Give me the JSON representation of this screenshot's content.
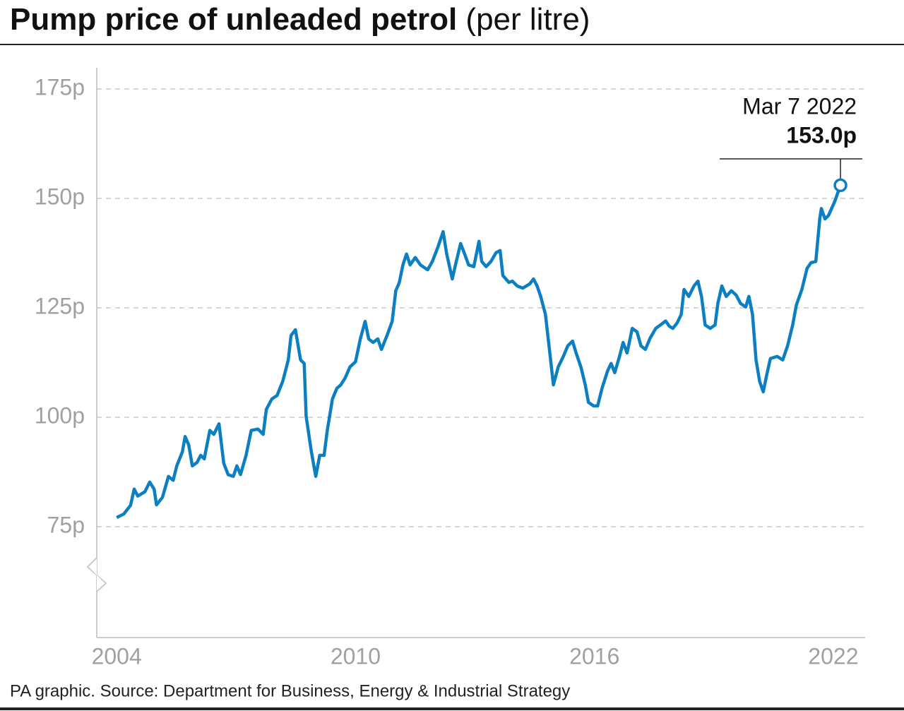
{
  "chart_data": {
    "type": "line",
    "title": "Pump price of unleaded petrol",
    "title_suffix": "(per litre)",
    "source": "PA graphic. Source: Department for Business, Energy & Industrial Strategy",
    "xlim": [
      2003.5,
      2022.8
    ],
    "xticks": [
      2004,
      2010,
      2016,
      2022
    ],
    "ylim": [
      50,
      175
    ],
    "yticks": [
      {
        "value": 75,
        "label": "75p"
      },
      {
        "value": 100,
        "label": "100p"
      },
      {
        "value": 125,
        "label": "125p"
      },
      {
        "value": 150,
        "label": "150p"
      },
      {
        "value": 175,
        "label": "175p"
      }
    ],
    "grid": true,
    "series": [
      {
        "name": "Unleaded petrol",
        "color": "#0b7fc2",
        "x": [
          2004.0,
          2004.18,
          2004.35,
          2004.44,
          2004.53,
          2004.71,
          2004.83,
          2004.94,
          2005.0,
          2005.15,
          2005.3,
          2005.42,
          2005.51,
          2005.65,
          2005.72,
          2005.81,
          2005.9,
          2006.02,
          2006.11,
          2006.2,
          2006.34,
          2006.44,
          2006.57,
          2006.69,
          2006.8,
          2006.93,
          2007.02,
          2007.11,
          2007.25,
          2007.38,
          2007.55,
          2007.68,
          2007.76,
          2007.9,
          2008.03,
          2008.17,
          2008.31,
          2008.38,
          2008.49,
          2008.62,
          2008.71,
          2008.76,
          2008.89,
          2009.0,
          2009.1,
          2009.21,
          2009.29,
          2009.42,
          2009.53,
          2009.63,
          2009.74,
          2009.86,
          2010.0,
          2010.12,
          2010.24,
          2010.33,
          2010.44,
          2010.56,
          2010.65,
          2010.79,
          2010.92,
          2011.01,
          2011.1,
          2011.19,
          2011.28,
          2011.37,
          2011.5,
          2011.63,
          2011.81,
          2011.93,
          2012.07,
          2012.2,
          2012.29,
          2012.43,
          2012.51,
          2012.64,
          2012.74,
          2012.84,
          2012.97,
          2013.1,
          2013.17,
          2013.28,
          2013.4,
          2013.53,
          2013.63,
          2013.7,
          2013.85,
          2013.94,
          2014.06,
          2014.2,
          2014.38,
          2014.47,
          2014.56,
          2014.65,
          2014.77,
          2014.88,
          2014.97,
          2015.09,
          2015.22,
          2015.33,
          2015.45,
          2015.54,
          2015.66,
          2015.77,
          2015.85,
          2015.98,
          2016.08,
          2016.19,
          2016.33,
          2016.42,
          2016.51,
          2016.63,
          2016.72,
          2016.82,
          2016.95,
          2017.07,
          2017.17,
          2017.28,
          2017.4,
          2017.54,
          2017.66,
          2017.79,
          2017.88,
          2017.97,
          2018.08,
          2018.18,
          2018.25,
          2018.37,
          2018.5,
          2018.6,
          2018.69,
          2018.78,
          2018.91,
          2019.03,
          2019.1,
          2019.2,
          2019.31,
          2019.44,
          2019.56,
          2019.67,
          2019.8,
          2019.88,
          2019.97,
          2020.06,
          2020.15,
          2020.24,
          2020.33,
          2020.42,
          2020.59,
          2020.73,
          2020.85,
          2020.98,
          2021.07,
          2021.21,
          2021.34,
          2021.44,
          2021.56,
          2021.66,
          2021.7,
          2021.79,
          2021.88,
          2022.04,
          2022.18
        ],
        "values": [
          77.1,
          77.9,
          79.9,
          83.6,
          82,
          83,
          85.2,
          83.6,
          80,
          81.7,
          86.5,
          85.6,
          88.9,
          92.1,
          95.6,
          93.7,
          88.9,
          89.7,
          91.3,
          90.5,
          97,
          96.1,
          98.5,
          89.5,
          86.9,
          86.5,
          88.9,
          86.9,
          91.3,
          97,
          97.3,
          96.1,
          101.8,
          104.2,
          105,
          108.2,
          113.1,
          118.7,
          120,
          113.1,
          112.3,
          100.2,
          92.1,
          86.5,
          91.3,
          91.3,
          97,
          104.2,
          106.6,
          107.4,
          109,
          111.5,
          112.7,
          117.9,
          121.9,
          117.9,
          117.1,
          117.9,
          115.5,
          118.7,
          121.9,
          128.9,
          130.8,
          134.8,
          137.3,
          134.8,
          136.5,
          134.8,
          133.7,
          135.6,
          138.9,
          142.4,
          137.3,
          131.6,
          134.8,
          139.7,
          137.3,
          134.8,
          134.4,
          140.2,
          135.6,
          134.4,
          135.6,
          137.6,
          138.1,
          132.4,
          130.8,
          131.1,
          130,
          129.5,
          130.5,
          131.6,
          130,
          127.6,
          123.5,
          114.7,
          107.4,
          111.5,
          113.9,
          116.3,
          117.4,
          114.7,
          111.5,
          107.4,
          103.4,
          102.6,
          102.6,
          106.6,
          110.6,
          112.3,
          110.2,
          113.9,
          117.1,
          114.7,
          120.3,
          119.5,
          116.3,
          115.5,
          118.1,
          120.3,
          121.1,
          122,
          120.8,
          120.3,
          121.6,
          123.5,
          129.2,
          127.6,
          130,
          131.1,
          127.6,
          121.1,
          120.3,
          121.1,
          126,
          130,
          127.6,
          128.9,
          127.9,
          126,
          125.2,
          127.6,
          123.5,
          113.1,
          108.2,
          105.8,
          109.8,
          113.4,
          113.9,
          113.1,
          116.3,
          121.1,
          125.6,
          129.2,
          134,
          135.3,
          135.6,
          145.3,
          147.7,
          145.3,
          146.1,
          149.4,
          153
        ]
      }
    ],
    "annotation": {
      "date": "Mar 7 2022",
      "value": 153.0,
      "label": "153.0p"
    }
  }
}
